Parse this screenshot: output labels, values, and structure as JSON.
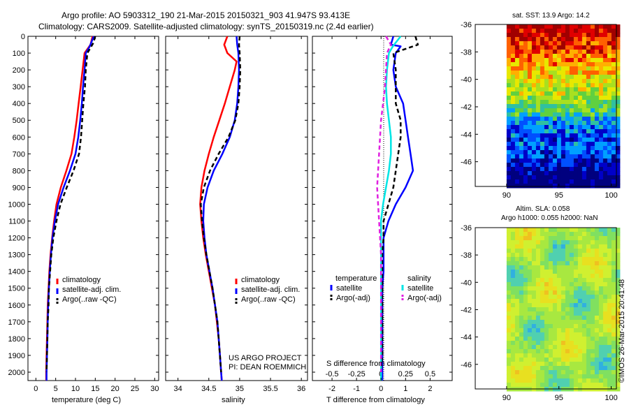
{
  "header": {
    "line1": "Argo profile: AO 5903312_190 21-Mar-2015 20150321_903 41.947S 93.413E",
    "line2": "Climatology: CARS2009. Satellite-adjusted climatology: synTS_20150319.nc (2.4d earlier)"
  },
  "colors": {
    "climatology": "#ff0000",
    "satellite": "#0000ff",
    "argo": "#000000",
    "s_satellite": "#00e5e5",
    "s_argo": "#e020e0"
  },
  "chart_data": [
    {
      "type": "line",
      "xlabel": "temperature (deg C)",
      "xlim": [
        -2,
        31
      ],
      "xticks": [
        "0",
        "5",
        "10",
        "15",
        "20",
        "25",
        "30"
      ],
      "ylim": [
        2050,
        0
      ],
      "yticks": [
        "0",
        "100",
        "200",
        "300",
        "400",
        "500",
        "600",
        "700",
        "800",
        "900",
        "1000",
        "1100",
        "1200",
        "1300",
        "1400",
        "1500",
        "1600",
        "1700",
        "1800",
        "1900",
        "2000"
      ],
      "legend": [
        "climatology",
        "satellite-adj. clim.",
        "Argo(..raw -QC)"
      ],
      "series": [
        {
          "name": "climatology",
          "style": "solid",
          "color": "#ff0000",
          "points": [
            [
              14.3,
              0
            ],
            [
              13.8,
              50
            ],
            [
              12.3,
              100
            ],
            [
              11.8,
              200
            ],
            [
              11.3,
              300
            ],
            [
              10.8,
              400
            ],
            [
              10.3,
              500
            ],
            [
              9.7,
              600
            ],
            [
              9.0,
              700
            ],
            [
              7.7,
              800
            ],
            [
              6.3,
              900
            ],
            [
              5.2,
              1000
            ],
            [
              4.6,
              1100
            ],
            [
              4.1,
              1200
            ],
            [
              3.7,
              1300
            ],
            [
              3.4,
              1400
            ],
            [
              3.2,
              1500
            ],
            [
              3.0,
              1600
            ],
            [
              2.9,
              1700
            ],
            [
              2.8,
              1800
            ],
            [
              2.7,
              1900
            ],
            [
              2.6,
              2000
            ],
            [
              2.6,
              2050
            ]
          ]
        },
        {
          "name": "satellite-adj. clim.",
          "style": "solid",
          "color": "#0000ff",
          "points": [
            [
              14.6,
              0
            ],
            [
              13.6,
              60
            ],
            [
              12.6,
              100
            ],
            [
              12.3,
              200
            ],
            [
              11.9,
              300
            ],
            [
              11.6,
              400
            ],
            [
              11.2,
              500
            ],
            [
              10.7,
              600
            ],
            [
              10.0,
              700
            ],
            [
              8.6,
              800
            ],
            [
              7.0,
              900
            ],
            [
              5.6,
              1000
            ],
            [
              4.8,
              1100
            ],
            [
              4.2,
              1200
            ],
            [
              3.8,
              1300
            ],
            [
              3.5,
              1400
            ],
            [
              3.3,
              1500
            ],
            [
              3.1,
              1600
            ],
            [
              3.0,
              1700
            ],
            [
              2.9,
              1800
            ],
            [
              2.8,
              1900
            ],
            [
              2.7,
              2000
            ],
            [
              2.7,
              2050
            ]
          ]
        },
        {
          "name": "Argo(..raw -QC)",
          "style": "dashed",
          "color": "#000000",
          "points": [
            [
              15.0,
              0
            ],
            [
              14.5,
              40
            ],
            [
              13.0,
              100
            ],
            [
              12.6,
              200
            ],
            [
              12.4,
              300
            ],
            [
              12.0,
              400
            ],
            [
              11.7,
              500
            ],
            [
              11.4,
              600
            ],
            [
              10.9,
              700
            ],
            [
              9.5,
              800
            ],
            [
              7.8,
              900
            ],
            [
              6.2,
              1000
            ],
            [
              5.2,
              1100
            ],
            [
              4.4,
              1200
            ],
            [
              3.9,
              1300
            ],
            [
              3.6,
              1400
            ],
            [
              3.3,
              1500
            ],
            [
              3.2,
              1600
            ],
            [
              3.0,
              1700
            ],
            [
              2.9,
              1800
            ],
            [
              2.8,
              1900
            ],
            [
              2.7,
              2000
            ]
          ]
        }
      ]
    },
    {
      "type": "line",
      "xlabel": "salinity",
      "xlim": [
        33.8,
        36.1
      ],
      "xticks": [
        "34",
        "34.5",
        "35",
        "35.5",
        "36"
      ],
      "ylim": [
        2050,
        0
      ],
      "legend": [
        "climatology",
        "satellite-adj. clim.",
        "Argo(..raw -QC)"
      ],
      "series": [
        {
          "name": "climatology",
          "style": "solid",
          "color": "#ff0000",
          "points": [
            [
              34.8,
              0
            ],
            [
              34.75,
              50
            ],
            [
              34.8,
              100
            ],
            [
              34.95,
              150
            ],
            [
              34.92,
              200
            ],
            [
              34.84,
              300
            ],
            [
              34.76,
              400
            ],
            [
              34.67,
              500
            ],
            [
              34.58,
              600
            ],
            [
              34.5,
              700
            ],
            [
              34.43,
              800
            ],
            [
              34.38,
              900
            ],
            [
              34.36,
              1000
            ],
            [
              34.38,
              1100
            ],
            [
              34.41,
              1200
            ],
            [
              34.45,
              1300
            ],
            [
              34.5,
              1400
            ],
            [
              34.55,
              1500
            ],
            [
              34.6,
              1600
            ],
            [
              34.63,
              1700
            ],
            [
              34.66,
              1800
            ],
            [
              34.68,
              1900
            ],
            [
              34.7,
              2000
            ],
            [
              34.71,
              2050
            ]
          ]
        },
        {
          "name": "satellite-adj. clim.",
          "style": "solid",
          "color": "#0000ff",
          "points": [
            [
              34.95,
              0
            ],
            [
              34.96,
              50
            ],
            [
              34.98,
              100
            ],
            [
              34.99,
              200
            ],
            [
              34.98,
              300
            ],
            [
              34.96,
              400
            ],
            [
              34.92,
              500
            ],
            [
              34.84,
              600
            ],
            [
              34.72,
              700
            ],
            [
              34.58,
              800
            ],
            [
              34.48,
              900
            ],
            [
              34.42,
              1000
            ],
            [
              34.41,
              1100
            ],
            [
              34.43,
              1200
            ],
            [
              34.46,
              1300
            ],
            [
              34.51,
              1400
            ],
            [
              34.56,
              1500
            ],
            [
              34.6,
              1600
            ],
            [
              34.64,
              1700
            ],
            [
              34.66,
              1800
            ],
            [
              34.68,
              1900
            ],
            [
              34.7,
              2000
            ],
            [
              34.71,
              2050
            ]
          ]
        },
        {
          "name": "Argo(..raw -QC)",
          "style": "dashed",
          "color": "#000000",
          "points": [
            [
              35.0,
              0
            ],
            [
              34.99,
              50
            ],
            [
              35.0,
              100
            ],
            [
              35.01,
              200
            ],
            [
              35.0,
              300
            ],
            [
              34.98,
              400
            ],
            [
              34.93,
              500
            ],
            [
              34.82,
              600
            ],
            [
              34.66,
              700
            ],
            [
              34.52,
              800
            ],
            [
              34.42,
              900
            ],
            [
              34.37,
              1000
            ],
            [
              34.39,
              1100
            ],
            [
              34.42,
              1200
            ],
            [
              34.46,
              1300
            ],
            [
              34.51,
              1400
            ],
            [
              34.56,
              1500
            ],
            [
              34.6,
              1600
            ],
            [
              34.64,
              1700
            ],
            [
              34.66,
              1800
            ],
            [
              34.68,
              1900
            ],
            [
              34.7,
              2000
            ]
          ]
        }
      ],
      "annotations": [
        "US ARGO PROJECT",
        "PI: DEAN ROEMMICH"
      ]
    },
    {
      "type": "line",
      "xlabel": "T difference from climatology",
      "xlabel2": "S difference from climatology",
      "xlim": [
        -2.8,
        2.9
      ],
      "xticks": [
        "-2",
        "-1",
        "0",
        "1",
        "2"
      ],
      "xticks2": [
        "-0.5",
        "-0.25",
        "0",
        "0.25",
        "0.5"
      ],
      "ylim": [
        2050,
        0
      ],
      "legend_titles": [
        "temperature",
        "salinity"
      ],
      "legend": [
        "satellite",
        "Argo(-adj)",
        "satellite",
        "Argo(-adj)"
      ],
      "series": [
        {
          "name": "satellite",
          "group": "temperature",
          "style": "solid",
          "color": "#0000ff",
          "points": [
            [
              0.5,
              0
            ],
            [
              0.4,
              50
            ],
            [
              0.8,
              60
            ],
            [
              0.6,
              100
            ],
            [
              0.5,
              200
            ],
            [
              0.6,
              300
            ],
            [
              0.9,
              400
            ],
            [
              1.0,
              500
            ],
            [
              1.1,
              600
            ],
            [
              1.2,
              700
            ],
            [
              1.3,
              800
            ],
            [
              1.0,
              900
            ],
            [
              0.6,
              1000
            ],
            [
              0.3,
              1100
            ],
            [
              0.1,
              1200
            ],
            [
              0.1,
              1300
            ],
            [
              0.1,
              1400
            ],
            [
              0.05,
              1500
            ],
            [
              0.05,
              1600
            ],
            [
              0.05,
              1700
            ],
            [
              0.05,
              1800
            ],
            [
              0.05,
              1900
            ],
            [
              0.05,
              2000
            ],
            [
              0.05,
              2050
            ]
          ]
        },
        {
          "name": "Argo(-adj)",
          "group": "temperature",
          "style": "dashed",
          "color": "#000000",
          "points": [
            [
              1.4,
              0
            ],
            [
              1.5,
              50
            ],
            [
              0.5,
              100
            ],
            [
              0.6,
              200
            ],
            [
              0.6,
              300
            ],
            [
              0.6,
              400
            ],
            [
              0.8,
              500
            ],
            [
              0.8,
              600
            ],
            [
              0.7,
              700
            ],
            [
              0.6,
              800
            ],
            [
              0.5,
              900
            ],
            [
              0.3,
              1000
            ],
            [
              0.1,
              1100
            ],
            [
              0.1,
              1200
            ],
            [
              0.05,
              1300
            ],
            [
              0.05,
              1400
            ],
            [
              0.05,
              1500
            ],
            [
              0.05,
              1600
            ],
            [
              0.05,
              1700
            ],
            [
              0.05,
              1800
            ],
            [
              0.05,
              1900
            ],
            [
              0.0,
              2000
            ]
          ]
        },
        {
          "name": "satellite",
          "group": "salinity",
          "style": "solid",
          "color": "#00e5e5",
          "points": [
            [
              0.2,
              0
            ],
            [
              0.12,
              60
            ],
            [
              0.08,
              100
            ],
            [
              0.06,
              200
            ],
            [
              0.05,
              300
            ],
            [
              0.06,
              400
            ],
            [
              0.08,
              500
            ],
            [
              0.1,
              600
            ],
            [
              0.1,
              700
            ],
            [
              0.08,
              800
            ],
            [
              0.05,
              900
            ],
            [
              0.02,
              1000
            ],
            [
              0.0,
              1100
            ],
            [
              0.0,
              1200
            ],
            [
              0.0,
              1400
            ],
            [
              0.0,
              1600
            ],
            [
              0.0,
              1800
            ],
            [
              0.0,
              2000
            ],
            [
              0.0,
              2050
            ]
          ]
        },
        {
          "name": "Argo(-adj)",
          "group": "salinity",
          "style": "dashed",
          "color": "#e020e0",
          "points": [
            [
              0.05,
              0
            ],
            [
              0.1,
              50
            ],
            [
              0.06,
              100
            ],
            [
              0.05,
              200
            ],
            [
              0.04,
              300
            ],
            [
              0.02,
              400
            ],
            [
              0.0,
              500
            ],
            [
              -0.01,
              600
            ],
            [
              -0.02,
              700
            ],
            [
              -0.03,
              800
            ],
            [
              -0.04,
              900
            ],
            [
              -0.03,
              1000
            ],
            [
              -0.02,
              1100
            ],
            [
              -0.01,
              1200
            ],
            [
              0.0,
              1300
            ],
            [
              0.0,
              1400
            ],
            [
              0.0,
              1600
            ],
            [
              0.0,
              1800
            ],
            [
              0.0,
              2000
            ]
          ]
        }
      ]
    },
    {
      "type": "heatmap",
      "title": "sat. SST: 13.9 Argo: 14.2",
      "xlim": [
        87,
        100.5
      ],
      "ylim": [
        -47.8,
        -36
      ],
      "xticks": [
        "90",
        "95",
        "100"
      ],
      "yticks": [
        "-36",
        "-38",
        "-40",
        "-42",
        "-44",
        "-46"
      ]
    },
    {
      "type": "heatmap",
      "title": "Altim. SLA: 0.058",
      "subtitle": "Argo h1000: 0.055 h2000: NaN",
      "xlim": [
        87,
        100.5
      ],
      "ylim": [
        -47.8,
        -36
      ],
      "xticks": [
        "90",
        "95",
        "100"
      ],
      "yticks": [
        "-36",
        "-38",
        "-40",
        "-42",
        "-44",
        "-46"
      ]
    }
  ],
  "credit": "©IMOS 26-Mar-2015 20:41:48"
}
